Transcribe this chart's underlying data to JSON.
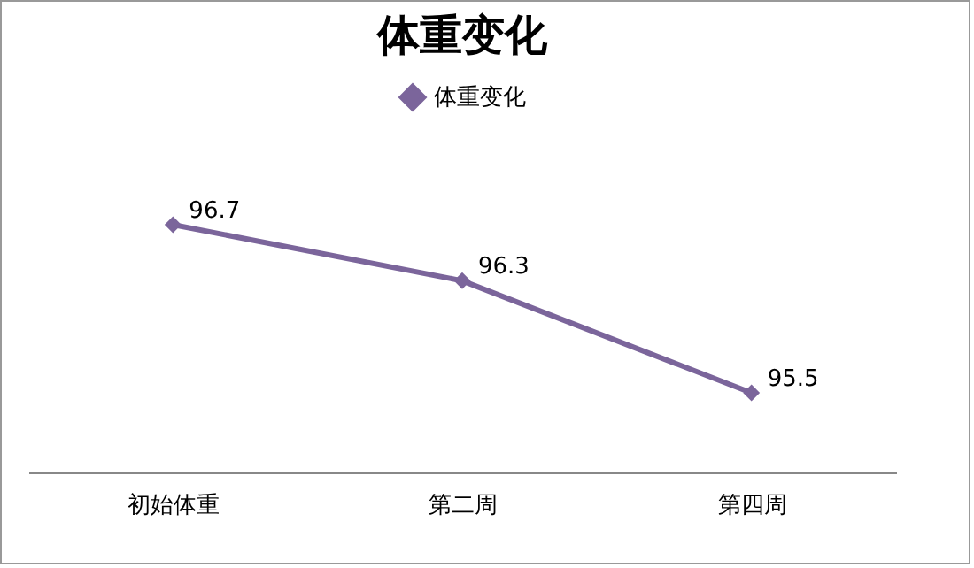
{
  "chart_data": {
    "type": "line",
    "title": "体重变化",
    "categories": [
      "初始体重",
      "第二周",
      "第四周"
    ],
    "series": [
      {
        "name": "体重变化",
        "color": "#7b659b",
        "values": [
          96.7,
          96.3,
          95.5
        ]
      }
    ],
    "data_labels": true,
    "legend": "top",
    "marker": "diamond",
    "grid": false
  }
}
